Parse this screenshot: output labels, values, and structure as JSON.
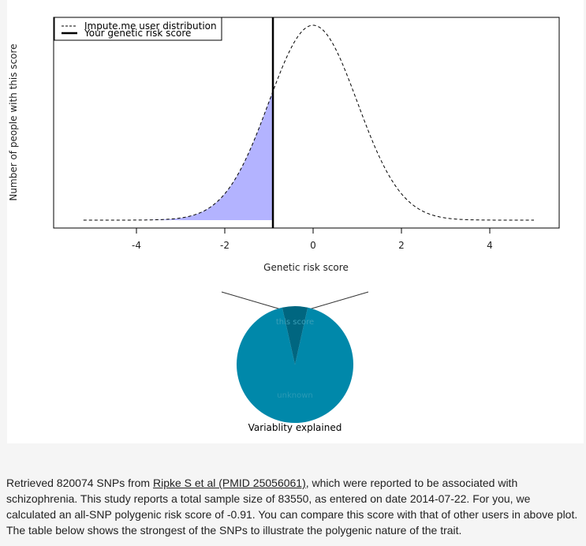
{
  "chart_data": [
    {
      "type": "area",
      "title": "",
      "xlabel": "Genetic risk score",
      "ylabel": "Number of people with this score",
      "xlim": [
        -5.5,
        5.5
      ],
      "ylim": [
        0,
        1
      ],
      "x_ticks": [
        -4,
        -2,
        0,
        2,
        4
      ],
      "grid": false,
      "legend_position": "top-left",
      "series": [
        {
          "name": "Impute.me user distribution",
          "style": "dashed",
          "distribution": "normal",
          "mean": 0,
          "sd": 1,
          "x_range": [
            -5.2,
            5.0
          ]
        },
        {
          "name": "Your genetic risk score",
          "style": "solid-vertical",
          "value": -0.91
        }
      ],
      "shaded_region": {
        "from": -5.2,
        "to": -0.91,
        "color": "#b3b3ff"
      }
    },
    {
      "type": "pie",
      "title": "Variablity explained",
      "slices": [
        {
          "label": "this score",
          "value": 0.07,
          "color": "#006680"
        },
        {
          "label": "unknown",
          "value": 0.93,
          "color": "#0088aa"
        }
      ]
    }
  ],
  "text": {
    "intro": "Retrieved 820074 SNPs from ",
    "link": "Ripke S et al (PMID 25056061)",
    "rest": ", which were reported to be associated with schizophrenia. This study reports a total sample size of 83550, as entered on date 2014-07-22. For you, we calculated an all-SNP polygenic risk score of -0.91. You can compare this score with that of other users in above plot. The table below shows the strongest of the SNPs to illustrate the polygenic nature of the trait."
  }
}
